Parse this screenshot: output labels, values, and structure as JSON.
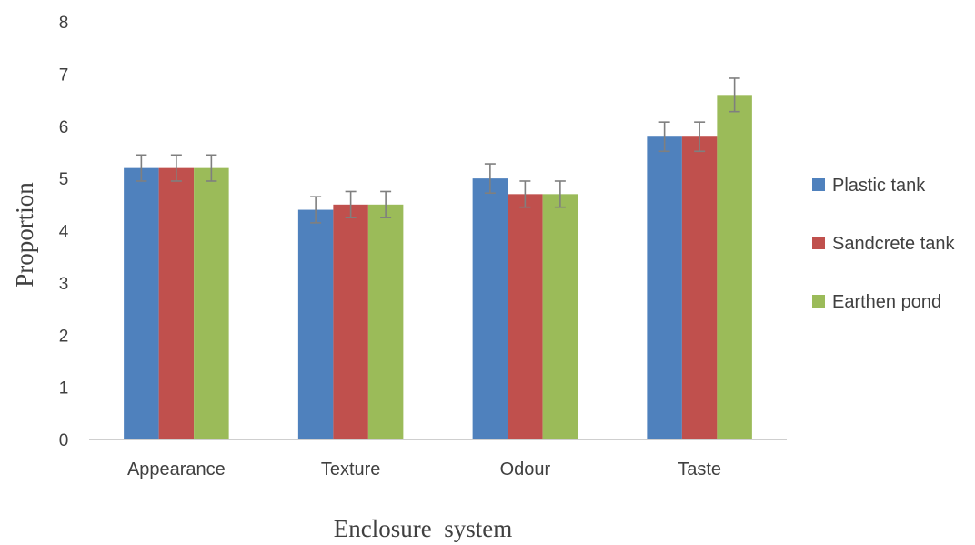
{
  "chart_data": {
    "type": "bar",
    "title": "",
    "xlabel": "Enclosure  system",
    "ylabel": "Proportion",
    "categories": [
      "Appearance",
      "Texture",
      "Odour",
      "Taste"
    ],
    "series": [
      {
        "name": "Plastic tank",
        "color": "#4F81BD",
        "values": [
          5.2,
          4.4,
          5.0,
          5.8
        ],
        "errors": [
          0.25,
          0.25,
          0.28,
          0.28
        ]
      },
      {
        "name": "Sandcrete tank",
        "color": "#C0504D",
        "values": [
          5.2,
          4.5,
          4.7,
          5.8
        ],
        "errors": [
          0.25,
          0.25,
          0.25,
          0.28
        ]
      },
      {
        "name": "Earthen pond",
        "color": "#9BBB59",
        "values": [
          5.2,
          4.5,
          4.7,
          6.6
        ],
        "errors": [
          0.25,
          0.25,
          0.25,
          0.32
        ]
      }
    ],
    "ylim": [
      0,
      8
    ],
    "yticks": [
      "0",
      "1",
      "2",
      "3",
      "4",
      "5",
      "6",
      "7",
      "8"
    ],
    "grid": false,
    "legend_position": "right",
    "error_bars": true
  }
}
